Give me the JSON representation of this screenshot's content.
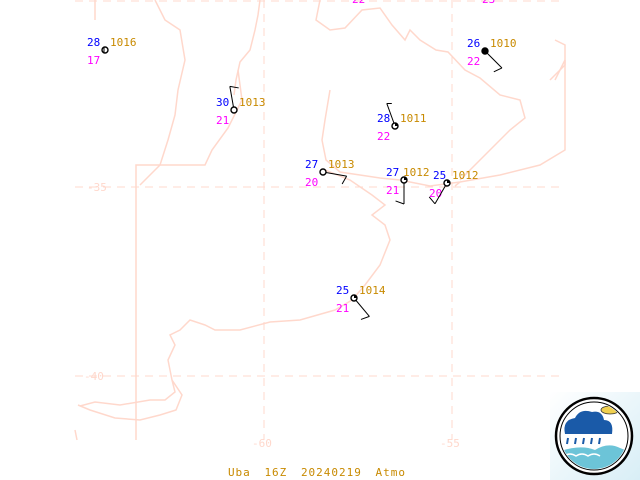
{
  "map": {
    "latitude_labels": [
      "-35",
      "-40"
    ],
    "longitude_labels": [
      "-60",
      "-55"
    ],
    "colors": {
      "grid": "#ffd8cc",
      "coast": "#ffd8cc",
      "temperature": "#0000ff",
      "pressure": "#c88a00",
      "dewpoint": "#ff00ff",
      "station": "#000000"
    },
    "partial_top_labels": [
      "22",
      "23"
    ]
  },
  "stations": [
    {
      "temperature": "28",
      "pressure": "1016",
      "dewpoint": "17",
      "wind": "calm",
      "cover": "empty"
    },
    {
      "temperature": "30",
      "pressure": "1013",
      "dewpoint": "21",
      "wind_from_deg": 350,
      "wind_kt": 10,
      "cover": "empty"
    },
    {
      "temperature": "28",
      "pressure": "1011",
      "dewpoint": "22",
      "wind_from_deg": 340,
      "wind_kt": 5,
      "cover": "partial"
    },
    {
      "temperature": "27",
      "pressure": "1013",
      "dewpoint": "20",
      "wind_from_deg": 100,
      "wind_kt": 10,
      "cover": "empty"
    },
    {
      "temperature": "27",
      "pressure": "1012",
      "dewpoint": "21",
      "wind_from_deg": 180,
      "wind_kt": 10,
      "cover": "partial"
    },
    {
      "temperature": "25",
      "pressure": "1012",
      "dewpoint": "20",
      "wind_from_deg": 210,
      "wind_kt": 10,
      "cover": "partial"
    },
    {
      "temperature": "26",
      "pressure": "1010",
      "dewpoint": "22",
      "wind_from_deg": 135,
      "wind_kt": 10,
      "cover": "overcast"
    },
    {
      "temperature": "25",
      "pressure": "1014",
      "dewpoint": "21",
      "wind_from_deg": 140,
      "wind_kt": 10,
      "cover": "partial"
    }
  ],
  "footer": {
    "site": "Uba",
    "time": "16Z",
    "date": "20240219",
    "source": "Atmo"
  },
  "logo": {
    "name": "atmosphere-logo"
  }
}
